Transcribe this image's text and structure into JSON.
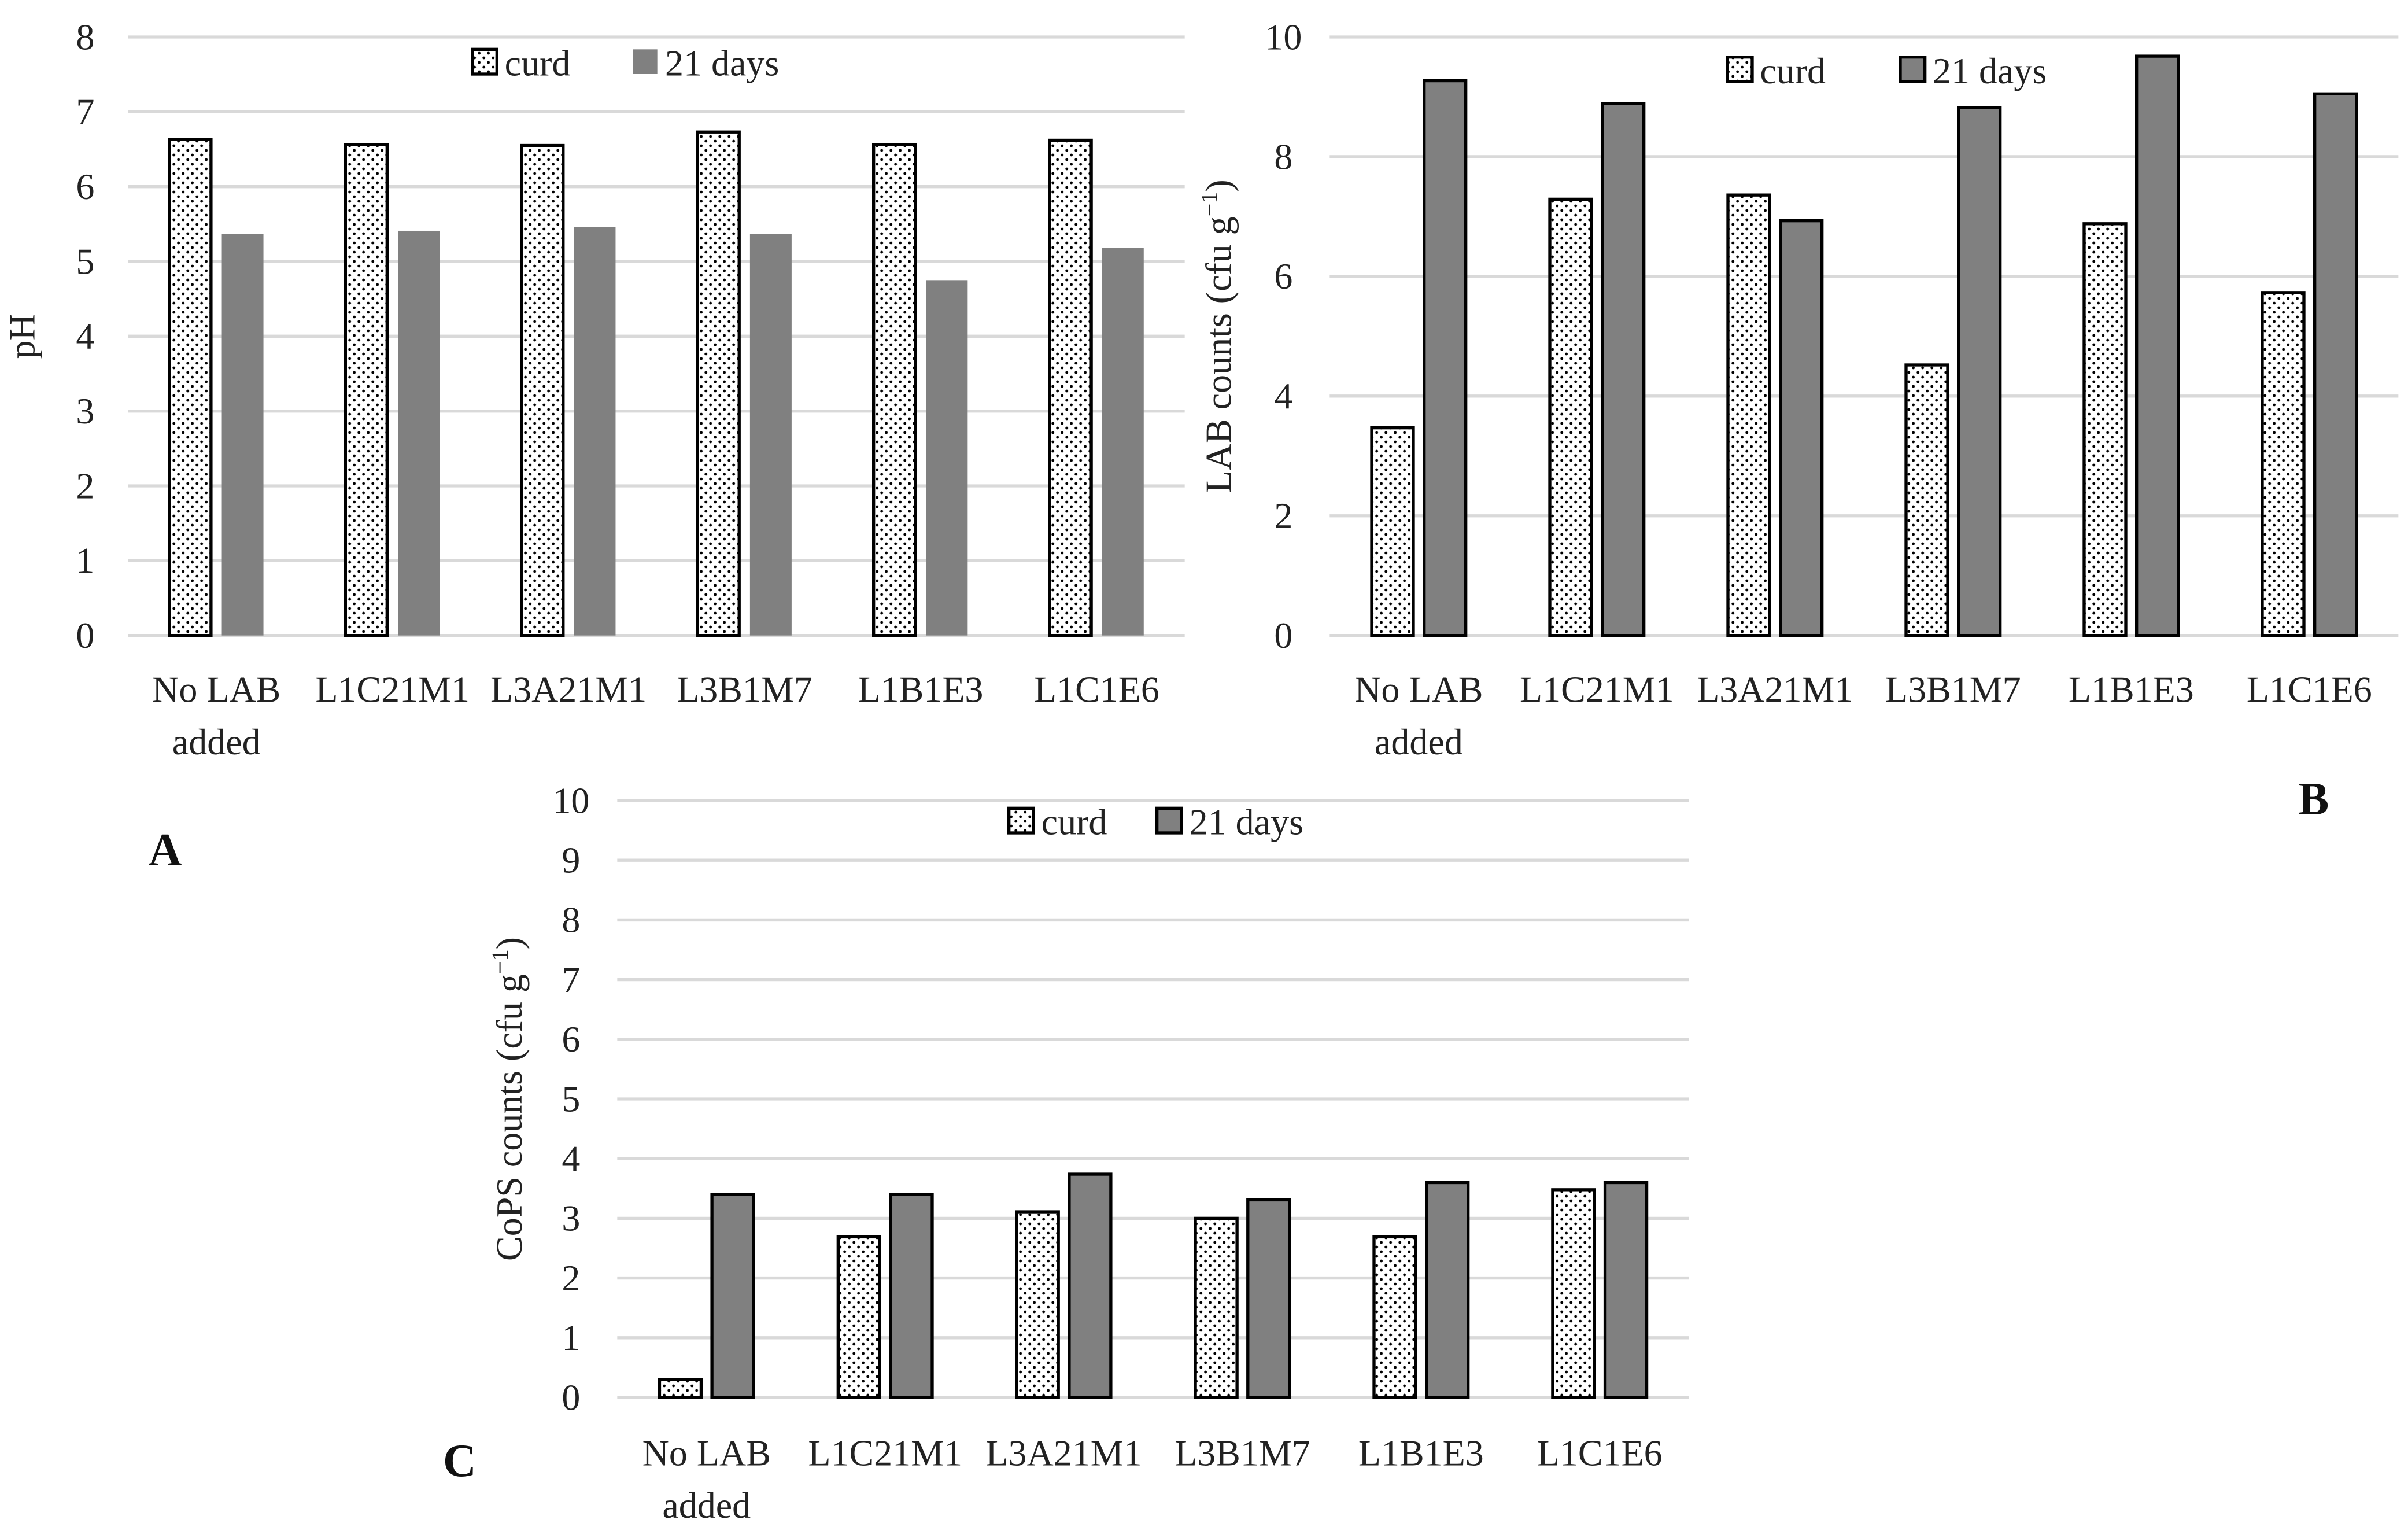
{
  "chart_data": [
    {
      "type": "bar",
      "panel": "A",
      "ylabel": "pH",
      "ylim": [
        0,
        8
      ],
      "ytick_step": 1,
      "grid": true,
      "legend": "top-center",
      "categories": [
        "No LAB added",
        "L1C21M1",
        "L3A21M1",
        "L3B1M7",
        "L1B1E3",
        "L1C1E6"
      ],
      "series": [
        {
          "name": "curd",
          "pattern": "dotted",
          "color": "#ffffff",
          "values": [
            6.63,
            6.56,
            6.55,
            6.73,
            6.56,
            6.62
          ]
        },
        {
          "name": "21 days",
          "pattern": "solid",
          "color": "#808080",
          "values": [
            5.37,
            5.41,
            5.46,
            5.37,
            4.75,
            5.18
          ]
        }
      ]
    },
    {
      "type": "bar",
      "panel": "B",
      "ylabel": "LAB counts (cfu g",
      "ylabel_sup": "−1",
      "ylabel_end": ")",
      "ylim": [
        0,
        10
      ],
      "ytick_step": 2,
      "grid": true,
      "legend": "top-center",
      "categories": [
        "No LAB added",
        "L1C21M1",
        "L3A21M1",
        "L3B1M7",
        "L1B1E3",
        "L1C1E6"
      ],
      "series": [
        {
          "name": "curd",
          "pattern": "dotted",
          "color": "#ffffff",
          "values": [
            3.47,
            7.29,
            7.36,
            4.52,
            6.88,
            5.73
          ]
        },
        {
          "name": "21 days",
          "pattern": "solid",
          "color": "#808080",
          "values": [
            9.27,
            8.89,
            6.93,
            8.82,
            9.68,
            9.05
          ]
        }
      ]
    },
    {
      "type": "bar",
      "panel": "C",
      "ylabel": "CoPS counts (cfu g",
      "ylabel_sup": "−1",
      "ylabel_end": ")",
      "ylim": [
        0,
        10
      ],
      "ytick_step": 1,
      "grid": true,
      "legend": "top-center",
      "categories": [
        "No LAB added",
        "L1C21M1",
        "L3A21M1",
        "L3B1M7",
        "L1B1E3",
        "L1C1E6"
      ],
      "series": [
        {
          "name": "curd",
          "pattern": "dotted",
          "color": "#ffffff",
          "values": [
            0.3,
            2.69,
            3.11,
            3.0,
            2.69,
            3.48
          ]
        },
        {
          "name": "21 days",
          "pattern": "solid",
          "color": "#808080",
          "values": [
            3.4,
            3.4,
            3.74,
            3.31,
            3.6,
            3.6
          ]
        }
      ]
    }
  ]
}
